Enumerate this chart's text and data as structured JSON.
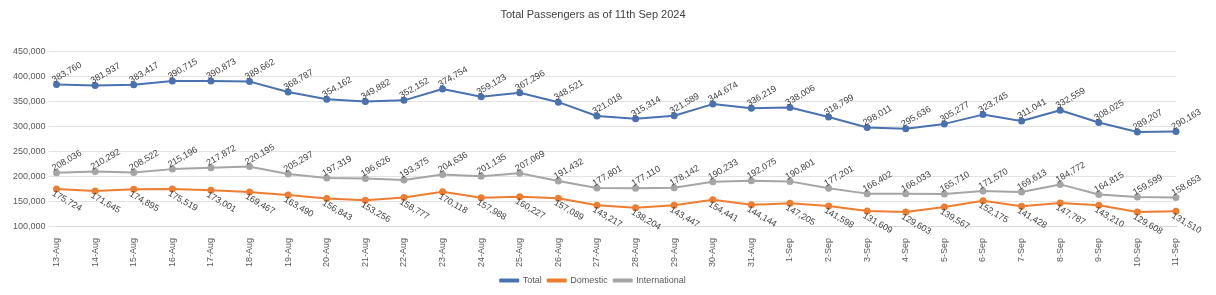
{
  "chart_data": {
    "type": "line",
    "title": "Total Passengers as of 11th Sep 2024",
    "categories": [
      "13-Aug",
      "14-Aug",
      "15-Aug",
      "16-Aug",
      "17-Aug",
      "18-Aug",
      "19-Aug",
      "20-Aug",
      "21-Aug",
      "22-Aug",
      "23-Aug",
      "24-Aug",
      "25-Aug",
      "26-Aug",
      "27-Aug",
      "28-Aug",
      "29-Aug",
      "30-Aug",
      "31-Aug",
      "1-Sep",
      "2-Sep",
      "3-Sep",
      "4-Sep",
      "5-Sep",
      "6-Sep",
      "7-Sep",
      "8-Sep",
      "9-Sep",
      "10-Sep",
      "11-Sep"
    ],
    "series": [
      {
        "name": "Total",
        "color": "#4a72b0",
        "values": [
          383760,
          381937,
          383417,
          390715,
          390873,
          389662,
          368787,
          354162,
          349882,
          352152,
          374754,
          359123,
          367296,
          348521,
          321018,
          315314,
          321589,
          344674,
          336219,
          338006,
          318799,
          298011,
          295636,
          305277,
          323745,
          311041,
          332559,
          308025,
          289207,
          290163
        ],
        "value_labels": [
          "383,760",
          "381,937",
          "383,417",
          "390,715",
          "390,873",
          "389,662",
          "368,787",
          "354,162",
          "349,882",
          "352,152",
          "374,754",
          "359,123",
          "367,296",
          "348,521",
          "321,018",
          "315,314",
          "321,589",
          "344,674",
          "336,219",
          "338,006",
          "318,799",
          "298,011",
          "295,636",
          "305,277",
          "323,745",
          "311,041",
          "332,559",
          "308,025",
          "289,207",
          "290,163"
        ]
      },
      {
        "name": "Domestic",
        "color": "#ed7d31",
        "values": [
          175724,
          171645,
          174895,
          175519,
          173001,
          169467,
          163490,
          156843,
          153256,
          158777,
          170118,
          157988,
          160227,
          157089,
          143217,
          138204,
          143447,
          154441,
          144144,
          147205,
          141598,
          131609,
          129603,
          139567,
          152175,
          141428,
          147787,
          143210,
          129608,
          131510
        ],
        "value_labels": [
          "175,724",
          "171,645",
          "174,895",
          "175,519",
          "173,001",
          "169,467",
          "163,490",
          "156,843",
          "153,256",
          "158,777",
          "170,118",
          "157,988",
          "160,227",
          "157,089",
          "143,217",
          "138,204",
          "143,447",
          "154,441",
          "144,144",
          "147,205",
          "141,598",
          "131,609",
          "129,603",
          "139,567",
          "152,175",
          "141,428",
          "147,787",
          "143,210",
          "129,608",
          "131,510"
        ]
      },
      {
        "name": "International",
        "color": "#a5a5a5",
        "values": [
          208036,
          210292,
          208522,
          215196,
          217872,
          220195,
          205297,
          197319,
          196626,
          193375,
          204636,
          201135,
          207069,
          191432,
          177801,
          177110,
          178142,
          190233,
          192075,
          190801,
          177201,
          166402,
          166033,
          165710,
          171570,
          169613,
          184772,
          164815,
          159599,
          158653
        ],
        "value_labels": [
          "208,036",
          "210,292",
          "208,522",
          "215,196",
          "217,872",
          "220,195",
          "205,297",
          "197,319",
          "196,626",
          "193,375",
          "204,636",
          "201,135",
          "207,069",
          "191,432",
          "177,801",
          "177,110",
          "178,142",
          "190,233",
          "192,075",
          "190,801",
          "177,201",
          "166,402",
          "166,033",
          "165,710",
          "171,570",
          "169,613",
          "184,772",
          "164,815",
          "159,599",
          "158,653"
        ]
      }
    ],
    "ylim": [
      100000,
      450000
    ],
    "yticks": [
      {
        "value": 100000,
        "label": "100,000"
      },
      {
        "value": 150000,
        "label": "150,000"
      },
      {
        "value": 200000,
        "label": "200,000"
      },
      {
        "value": 250000,
        "label": "250,000"
      },
      {
        "value": 300000,
        "label": "300,000"
      },
      {
        "value": 350000,
        "label": "350,000"
      },
      {
        "value": 400000,
        "label": "400,000"
      },
      {
        "value": 450000,
        "label": "450,000"
      }
    ],
    "grid": "y",
    "legend": "bottom",
    "marker": "circle",
    "line_style": "solid"
  }
}
